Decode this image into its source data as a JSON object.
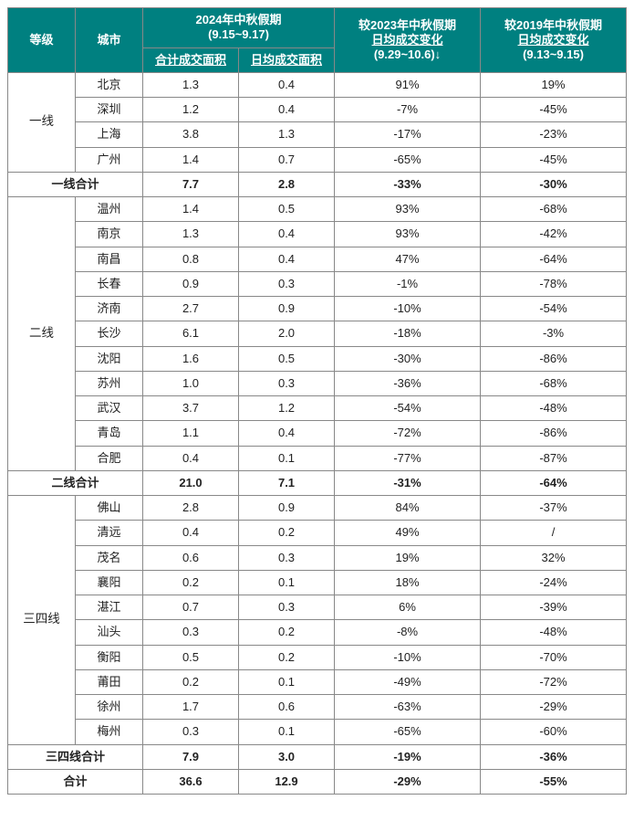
{
  "colors": {
    "header_bg": "#008080",
    "header_fg": "#ffffff",
    "cell_bg": "#ffffff",
    "cell_fg": "#222222",
    "border": "#888888"
  },
  "font": {
    "family": "Microsoft YaHei",
    "header_size_pt": 10,
    "cell_size_pt": 10
  },
  "columns": {
    "tier": "等级",
    "city": "城市",
    "period_2024": {
      "line1": "2024年中秋假期",
      "line2": "(9.15~9.17)",
      "sub_total": "合计成交面积",
      "sub_daily": "日均成交面积"
    },
    "vs_2023": {
      "line1": "较2023年中秋假期",
      "line2_underline": "日均成交变化",
      "line3": "(9.29~10.6)↓"
    },
    "vs_2019": {
      "line1": "较2019年中秋假期",
      "line2_underline": "日均成交变化",
      "line3": "(9.13~9.15)"
    }
  },
  "groups": [
    {
      "tier": "一线",
      "rows": [
        {
          "city": "北京",
          "total": "1.3",
          "daily": "0.4",
          "vs2023": "91%",
          "vs2019": "19%"
        },
        {
          "city": "深圳",
          "total": "1.2",
          "daily": "0.4",
          "vs2023": "-7%",
          "vs2019": "-45%"
        },
        {
          "city": "上海",
          "total": "3.8",
          "daily": "1.3",
          "vs2023": "-17%",
          "vs2019": "-23%"
        },
        {
          "city": "广州",
          "total": "1.4",
          "daily": "0.7",
          "vs2023": "-65%",
          "vs2019": "-45%"
        }
      ],
      "subtotal": {
        "label": "一线合计",
        "total": "7.7",
        "daily": "2.8",
        "vs2023": "-33%",
        "vs2019": "-30%"
      }
    },
    {
      "tier": "二线",
      "rows": [
        {
          "city": "温州",
          "total": "1.4",
          "daily": "0.5",
          "vs2023": "93%",
          "vs2019": "-68%"
        },
        {
          "city": "南京",
          "total": "1.3",
          "daily": "0.4",
          "vs2023": "93%",
          "vs2019": "-42%"
        },
        {
          "city": "南昌",
          "total": "0.8",
          "daily": "0.4",
          "vs2023": "47%",
          "vs2019": "-64%"
        },
        {
          "city": "长春",
          "total": "0.9",
          "daily": "0.3",
          "vs2023": "-1%",
          "vs2019": "-78%"
        },
        {
          "city": "济南",
          "total": "2.7",
          "daily": "0.9",
          "vs2023": "-10%",
          "vs2019": "-54%"
        },
        {
          "city": "长沙",
          "total": "6.1",
          "daily": "2.0",
          "vs2023": "-18%",
          "vs2019": "-3%"
        },
        {
          "city": "沈阳",
          "total": "1.6",
          "daily": "0.5",
          "vs2023": "-30%",
          "vs2019": "-86%"
        },
        {
          "city": "苏州",
          "total": "1.0",
          "daily": "0.3",
          "vs2023": "-36%",
          "vs2019": "-68%"
        },
        {
          "city": "武汉",
          "total": "3.7",
          "daily": "1.2",
          "vs2023": "-54%",
          "vs2019": "-48%"
        },
        {
          "city": "青岛",
          "total": "1.1",
          "daily": "0.4",
          "vs2023": "-72%",
          "vs2019": "-86%"
        },
        {
          "city": "合肥",
          "total": "0.4",
          "daily": "0.1",
          "vs2023": "-77%",
          "vs2019": "-87%"
        }
      ],
      "subtotal": {
        "label": "二线合计",
        "total": "21.0",
        "daily": "7.1",
        "vs2023": "-31%",
        "vs2019": "-64%"
      }
    },
    {
      "tier": "三四线",
      "rows": [
        {
          "city": "佛山",
          "total": "2.8",
          "daily": "0.9",
          "vs2023": "84%",
          "vs2019": "-37%"
        },
        {
          "city": "清远",
          "total": "0.4",
          "daily": "0.2",
          "vs2023": "49%",
          "vs2019": "/"
        },
        {
          "city": "茂名",
          "total": "0.6",
          "daily": "0.3",
          "vs2023": "19%",
          "vs2019": "32%"
        },
        {
          "city": "襄阳",
          "total": "0.2",
          "daily": "0.1",
          "vs2023": "18%",
          "vs2019": "-24%"
        },
        {
          "city": "湛江",
          "total": "0.7",
          "daily": "0.3",
          "vs2023": "6%",
          "vs2019": "-39%"
        },
        {
          "city": "汕头",
          "total": "0.3",
          "daily": "0.2",
          "vs2023": "-8%",
          "vs2019": "-48%"
        },
        {
          "city": "衡阳",
          "total": "0.5",
          "daily": "0.2",
          "vs2023": "-10%",
          "vs2019": "-70%"
        },
        {
          "city": "莆田",
          "total": "0.2",
          "daily": "0.1",
          "vs2023": "-49%",
          "vs2019": "-72%"
        },
        {
          "city": "徐州",
          "total": "1.7",
          "daily": "0.6",
          "vs2023": "-63%",
          "vs2019": "-29%"
        },
        {
          "city": "梅州",
          "total": "0.3",
          "daily": "0.1",
          "vs2023": "-65%",
          "vs2019": "-60%"
        }
      ],
      "subtotal": {
        "label": "三四线合计",
        "total": "7.9",
        "daily": "3.0",
        "vs2023": "-19%",
        "vs2019": "-36%"
      }
    }
  ],
  "grand_total": {
    "label": "合计",
    "total": "36.6",
    "daily": "12.9",
    "vs2023": "-29%",
    "vs2019": "-55%"
  }
}
